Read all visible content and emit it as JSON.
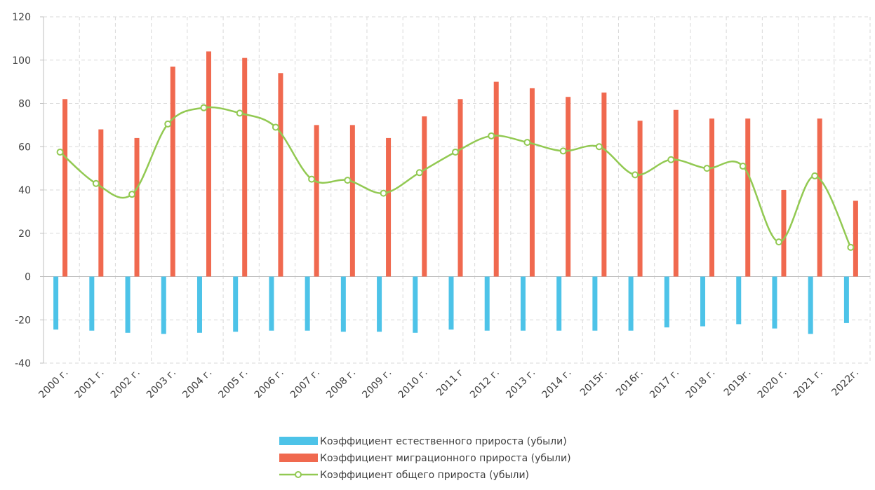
{
  "chart_data": {
    "type": "bar_line",
    "categories": [
      "2000 г.",
      "2001 г.",
      "2002 г.",
      "2003 г.",
      "2004 г.",
      "2005 г.",
      "2006 г.",
      "2007 г.",
      "2008 г.",
      "2009 г.",
      "2010 г.",
      "2011 г",
      "2012 г.",
      "2013 г.",
      "2014 г.",
      "2015г.",
      "2016г.",
      "2017 г.",
      "2018 г.",
      "2019г.",
      "2020 г.",
      "2021 г.",
      "2022г."
    ],
    "series": [
      {
        "name": "Коэффициент естественного прироста (убыли)",
        "type": "bar",
        "color": "#4dc3e8",
        "values": [
          -24.5,
          -25,
          -26,
          -26.5,
          -26,
          -25.5,
          -25,
          -25,
          -25.5,
          -25.5,
          -26,
          -24.5,
          -25,
          -25,
          -25,
          -25,
          -25,
          -23.5,
          -23,
          -22,
          -24,
          -26.5,
          -21.5
        ]
      },
      {
        "name": "Коэффициент миграционного прироста (убыли)",
        "type": "bar",
        "color": "#f0694f",
        "values": [
          82,
          68,
          64,
          97,
          104,
          101,
          94,
          70,
          70,
          64,
          74,
          82,
          90,
          87,
          83,
          85,
          72,
          77,
          73,
          73,
          40,
          73,
          35
        ]
      },
      {
        "name": "Коэффициент общего прироста (убыли)",
        "type": "line",
        "color": "#92c952",
        "values": [
          57.5,
          43,
          38,
          70.5,
          78,
          75.5,
          69,
          45,
          44.5,
          38.5,
          48,
          57.5,
          65,
          62,
          58,
          60,
          47,
          54,
          50,
          51,
          16,
          46.5,
          13.5
        ]
      }
    ],
    "ylim": [
      -40,
      120
    ],
    "yticks": [
      -40,
      -20,
      0,
      20,
      40,
      60,
      80,
      100,
      120
    ],
    "grid": true,
    "legend": "bottom"
  }
}
